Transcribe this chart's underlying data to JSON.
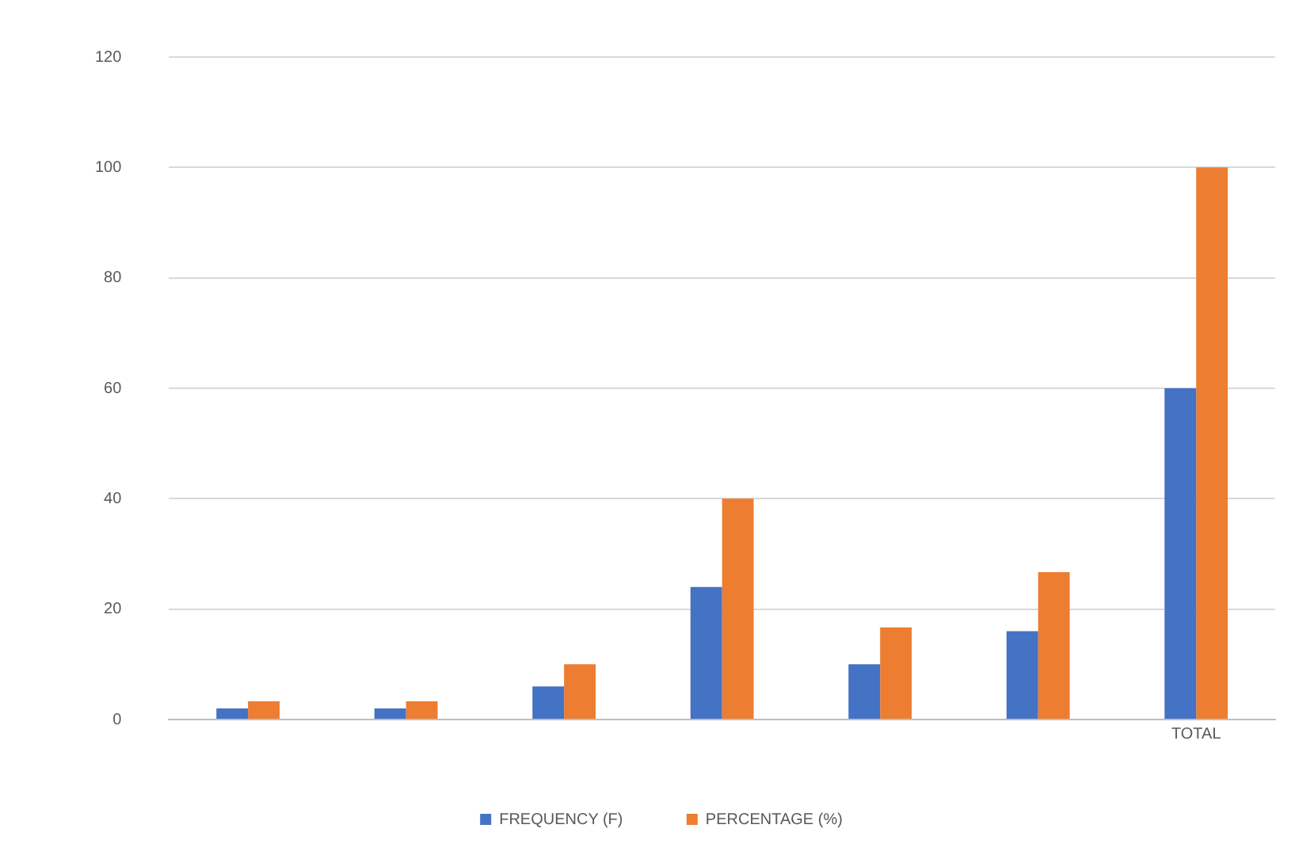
{
  "chart_data": {
    "type": "bar",
    "categories": [
      null,
      null,
      null,
      null,
      null,
      null,
      "TOTAL"
    ],
    "series": [
      {
        "name": "FREQUENCY (F)",
        "color": "#4472c4",
        "values": [
          2,
          2,
          6,
          24,
          10,
          16,
          60
        ]
      },
      {
        "name": "PERCENTAGE (%)",
        "color": "#ed7d31",
        "values": [
          3.3,
          3.3,
          10,
          40,
          16.7,
          26.7,
          100
        ]
      }
    ],
    "ylim": [
      0,
      120
    ],
    "yticks": [
      0,
      20,
      40,
      60,
      80,
      100,
      120
    ],
    "grid": "y",
    "legend": "bottom"
  }
}
